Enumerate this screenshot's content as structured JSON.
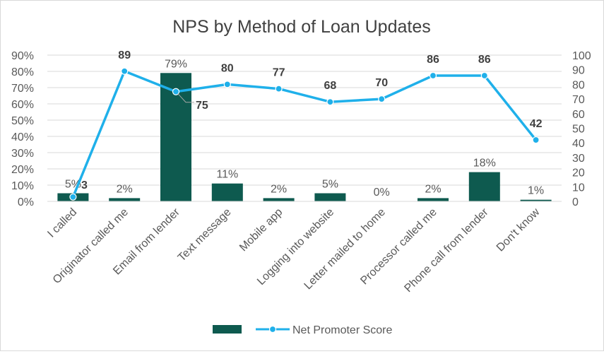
{
  "chart_data": {
    "type": "bar",
    "title": "NPS by Method of Loan Updates",
    "categories": [
      "I called",
      "Originator called me",
      "Email from lender",
      "Text message",
      "Mobile app",
      "Logging into website",
      "Letter mailed to home",
      "Processor called me",
      "Phone call from lender",
      "Don't know"
    ],
    "series": [
      {
        "name": "",
        "type": "bar",
        "axis": "left",
        "values": [
          5,
          2,
          79,
          11,
          2,
          5,
          0,
          2,
          18,
          1
        ],
        "labels": [
          "5%",
          "2%",
          "79%",
          "11%",
          "2%",
          "5%",
          "0%",
          "2%",
          "18%",
          "1%"
        ]
      },
      {
        "name": "Net Promoter Score",
        "type": "line",
        "axis": "right",
        "values": [
          3,
          89,
          75,
          80,
          77,
          68,
          70,
          86,
          86,
          42
        ],
        "labels": [
          "3",
          "89",
          "75",
          "80",
          "77",
          "68",
          "70",
          "86",
          "86",
          "42"
        ]
      }
    ],
    "y_left": {
      "min": 0,
      "max": 90,
      "step": 10,
      "ticks": [
        "0%",
        "10%",
        "20%",
        "30%",
        "40%",
        "50%",
        "60%",
        "70%",
        "80%",
        "90%"
      ]
    },
    "y_right": {
      "min": 0,
      "max": 100,
      "step": 10,
      "ticks": [
        "0",
        "10",
        "20",
        "30",
        "40",
        "50",
        "60",
        "70",
        "80",
        "90",
        "100"
      ]
    },
    "grid": true,
    "legend": "bottom",
    "colors": {
      "bar": "#0e5a4f",
      "line": "#1fb0ea",
      "grid": "#d9d9d9",
      "text": "#595959",
      "bold": "#404040"
    }
  }
}
